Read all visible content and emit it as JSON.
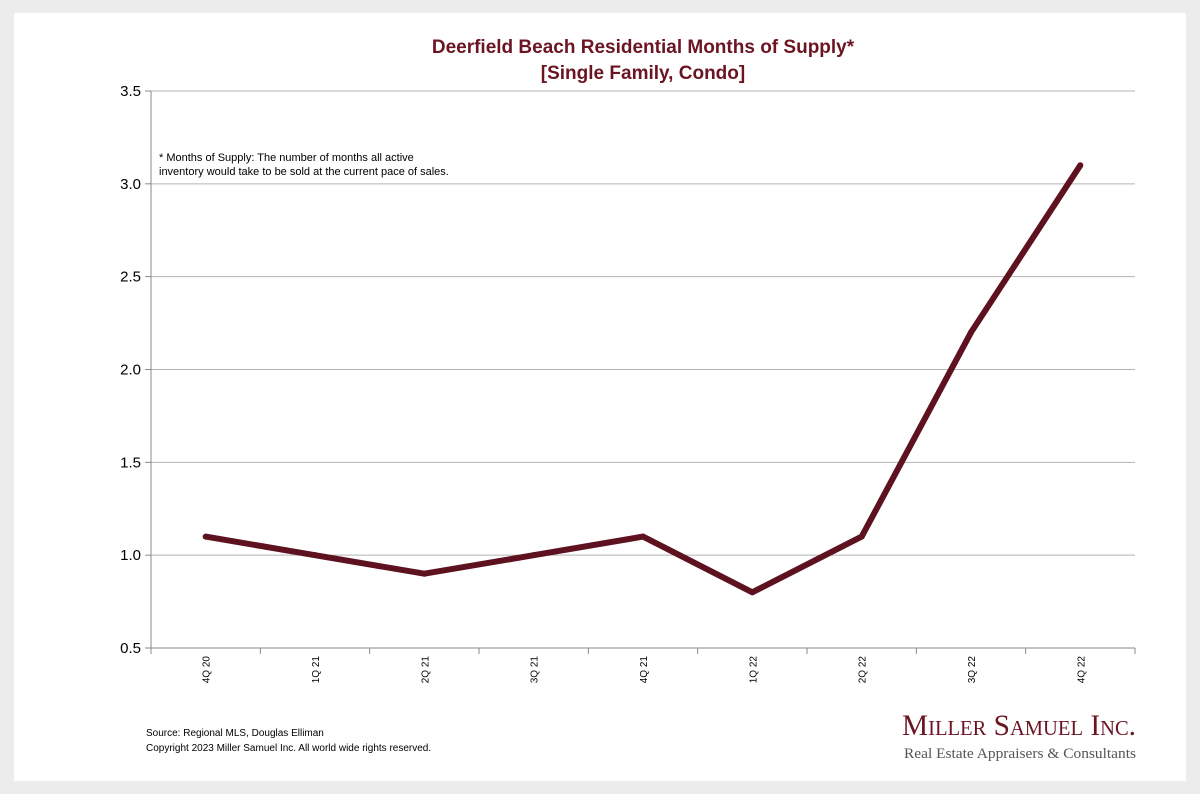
{
  "chart_data": {
    "type": "line",
    "title": "Deerfield Beach Residential Months of Supply*",
    "subtitle": "[Single Family, Condo]",
    "categories": [
      "4Q 20",
      "1Q 21",
      "2Q 21",
      "3Q 21",
      "4Q 21",
      "1Q 22",
      "2Q 22",
      "3Q 22",
      "4Q 22"
    ],
    "series": [
      {
        "values": [
          1.1,
          1.0,
          0.9,
          1.0,
          1.1,
          0.8,
          1.1,
          2.2,
          3.1
        ]
      }
    ],
    "ylim": [
      0.5,
      3.5
    ],
    "yticks": [
      "0.5",
      "1.0",
      "1.5",
      "2.0",
      "2.5",
      "3.0",
      "3.5"
    ],
    "grid": true,
    "line_color": "#5e1220",
    "annotation": [
      "* Months of Supply: The number of months all active",
      "inventory would take to be sold at the current pace of sales."
    ]
  },
  "footer": {
    "source": "Source: Regional MLS, Douglas Elliman",
    "copyright": "Copyright 2023 Miller Samuel Inc.  All world wide rights reserved."
  },
  "brand": {
    "name": "Miller Samuel Inc.",
    "tagline": "Real Estate Appraisers & Consultants"
  }
}
